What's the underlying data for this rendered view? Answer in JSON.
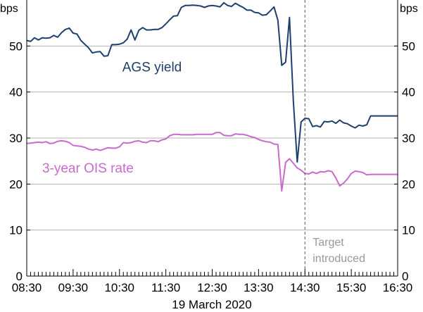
{
  "chart_data": {
    "type": "line",
    "xlabel": "19 March 2020",
    "y_unit_left": "bps",
    "y_unit_right": "bps",
    "ylim": [
      0,
      60
    ],
    "yticks": [
      0,
      10,
      20,
      30,
      40,
      50
    ],
    "xlim": [
      "08:30",
      "16:30"
    ],
    "xticks": [
      "08:30",
      "09:30",
      "10:30",
      "11:30",
      "12:30",
      "13:30",
      "14:30",
      "15:30",
      "16:30"
    ],
    "grid": true,
    "annotation": {
      "label_lines": [
        "Target",
        "introduced"
      ],
      "x": "14:30"
    },
    "series": [
      {
        "name": "AGS yield",
        "color": "#1f3f6e",
        "x": [
          "08:30",
          "08:35",
          "08:40",
          "08:45",
          "08:50",
          "08:55",
          "09:00",
          "09:05",
          "09:10",
          "09:15",
          "09:20",
          "09:25",
          "09:30",
          "09:35",
          "09:40",
          "09:45",
          "09:50",
          "09:55",
          "10:00",
          "10:05",
          "10:10",
          "10:15",
          "10:20",
          "10:25",
          "10:30",
          "10:35",
          "10:40",
          "10:45",
          "10:50",
          "10:55",
          "11:00",
          "11:05",
          "11:10",
          "11:15",
          "11:20",
          "11:25",
          "11:30",
          "11:35",
          "11:40",
          "11:45",
          "11:50",
          "11:55",
          "12:00",
          "12:05",
          "12:10",
          "12:15",
          "12:20",
          "12:25",
          "12:30",
          "12:35",
          "12:40",
          "12:45",
          "12:50",
          "12:55",
          "13:00",
          "13:05",
          "13:10",
          "13:15",
          "13:20",
          "13:25",
          "13:30",
          "13:35",
          "13:40",
          "13:45",
          "13:50",
          "13:55",
          "14:00",
          "14:05",
          "14:10",
          "14:15",
          "14:20",
          "14:25",
          "14:30",
          "14:35",
          "14:40",
          "14:45",
          "14:50",
          "14:55",
          "15:00",
          "15:05",
          "15:10",
          "15:15",
          "15:20",
          "15:25",
          "15:30",
          "15:35",
          "15:40",
          "15:45",
          "15:50",
          "15:55",
          "16:00",
          "16:05",
          "16:10",
          "16:15",
          "16:20",
          "16:25",
          "16:30"
        ],
        "values": [
          51.2,
          51,
          51.8,
          51.3,
          51.8,
          51.7,
          51.8,
          52.3,
          51.9,
          52.9,
          53.6,
          53.9,
          52.8,
          52.6,
          51.2,
          50.4,
          49.6,
          48.5,
          48.7,
          48.8,
          47.8,
          47.9,
          50.3,
          50.3,
          50.4,
          50.7,
          51.5,
          53.5,
          51.3,
          53.4,
          54,
          53.5,
          53.5,
          53.6,
          53.6,
          54,
          54.8,
          55.7,
          56.5,
          56.6,
          58.4,
          58.8,
          58.8,
          58.9,
          58.8,
          58.7,
          58.4,
          58.7,
          58.8,
          58.7,
          58.5,
          59.4,
          58.8,
          58.6,
          59.3,
          58.8,
          58.4,
          57.8,
          57.8,
          57.3,
          57.2,
          56.7,
          56.8,
          57.6,
          58.5,
          55.6,
          45.8,
          46.5,
          56.2,
          38,
          24.8,
          33.5,
          34.3,
          34.2,
          32.5,
          32.7,
          32.4,
          33.6,
          33.5,
          33.7,
          33.2,
          33.9,
          33.3,
          33.1,
          32.6,
          32.2,
          32.8,
          32.6,
          32.9,
          34.8,
          34.8,
          34.8,
          34.8,
          34.8,
          34.8,
          34.8,
          34.8
        ]
      },
      {
        "name": "3-year OIS rate",
        "color": "#c86bcf",
        "x": [
          "08:30",
          "08:35",
          "08:40",
          "08:45",
          "08:50",
          "08:55",
          "09:00",
          "09:05",
          "09:10",
          "09:15",
          "09:20",
          "09:25",
          "09:30",
          "09:35",
          "09:40",
          "09:45",
          "09:50",
          "09:55",
          "10:00",
          "10:05",
          "10:10",
          "10:15",
          "10:20",
          "10:25",
          "10:30",
          "10:35",
          "10:40",
          "10:45",
          "10:50",
          "10:55",
          "11:00",
          "11:05",
          "11:10",
          "11:15",
          "11:20",
          "11:25",
          "11:30",
          "11:35",
          "11:40",
          "11:45",
          "11:50",
          "11:55",
          "12:00",
          "12:05",
          "12:10",
          "12:15",
          "12:20",
          "12:25",
          "12:30",
          "12:35",
          "12:40",
          "12:45",
          "12:50",
          "12:55",
          "13:00",
          "13:05",
          "13:10",
          "13:15",
          "13:20",
          "13:25",
          "13:30",
          "13:35",
          "13:40",
          "13:45",
          "13:50",
          "13:55",
          "14:00",
          "14:05",
          "14:10",
          "14:15",
          "14:20",
          "14:25",
          "14:30",
          "14:35",
          "14:40",
          "14:45",
          "14:50",
          "14:55",
          "15:00",
          "15:05",
          "15:10",
          "15:15",
          "15:20",
          "15:25",
          "15:30",
          "15:35",
          "15:40",
          "15:45",
          "15:50",
          "15:55",
          "16:00",
          "16:05",
          "16:10",
          "16:15",
          "16:20",
          "16:25",
          "16:30"
        ],
        "values": [
          28.8,
          28.9,
          29,
          29.1,
          29,
          29.2,
          28.8,
          28.9,
          29.3,
          29.4,
          29.3,
          29,
          28.4,
          28.3,
          28.2,
          28,
          27.6,
          27.4,
          27.6,
          27.3,
          27.6,
          27.9,
          27.8,
          27.8,
          28.1,
          29,
          28.9,
          29,
          29.3,
          29.4,
          29.1,
          29,
          29.4,
          29.4,
          29.2,
          29.6,
          29.8,
          30.5,
          30.8,
          30.8,
          30.7,
          30.7,
          30.7,
          30.7,
          30.8,
          30.8,
          30.8,
          30.8,
          30.8,
          31.2,
          31.2,
          30.6,
          30.5,
          30.5,
          30.9,
          30.8,
          30.8,
          30.6,
          30.3,
          30.1,
          29.7,
          29.4,
          29.2,
          29.1,
          28.7,
          28.6,
          18.5,
          24.7,
          25.5,
          24.5,
          23.5,
          23,
          22.3,
          22.2,
          22.6,
          22.3,
          22.7,
          22.6,
          22.9,
          22.7,
          21.3,
          19.6,
          20.2,
          21.1,
          22.3,
          22.8,
          22.7,
          22.5,
          22,
          22.1,
          22.1,
          22.1,
          22.1,
          22.1,
          22.1,
          22.1,
          22.1
        ]
      }
    ]
  }
}
